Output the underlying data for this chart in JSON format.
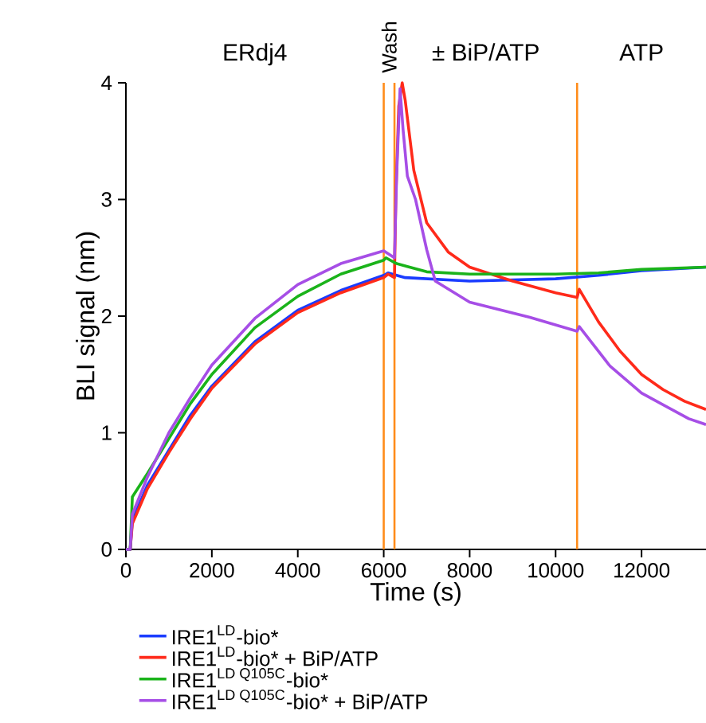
{
  "chart_data": {
    "type": "line",
    "xlabel": "Time (s)",
    "ylabel": "BLI signal (nm)",
    "xlim": [
      0,
      13500
    ],
    "ylim": [
      0,
      4
    ],
    "xticks": [
      0,
      2000,
      4000,
      6000,
      8000,
      10000,
      12000
    ],
    "yticks": [
      0,
      1,
      2,
      3,
      4
    ],
    "grid": false,
    "legend": "bottom",
    "marker": "none",
    "line_style": "solid",
    "ref_lines": [
      {
        "axis": "x",
        "value": 6000,
        "color": "#ff8c1a"
      },
      {
        "axis": "x",
        "value": 6250,
        "color": "#ff8c1a"
      },
      {
        "axis": "x",
        "value": 10500,
        "color": "#ff8c1a"
      }
    ],
    "annotations": [
      "ERdj4",
      "Wash",
      "± BiP/ATP",
      "ATP"
    ],
    "series": [
      {
        "name": "\\text{IRE1}^{\\text{LD}}\\text{-bio*}",
        "color": "#1a3cff",
        "x": [
          0,
          100,
          150,
          500,
          1000,
          1500,
          2000,
          3000,
          4000,
          5000,
          6000,
          6100,
          6500,
          8000,
          10000,
          11000,
          12000,
          13500
        ],
        "values": [
          0,
          0,
          0.25,
          0.55,
          0.85,
          1.15,
          1.4,
          1.78,
          2.05,
          2.22,
          2.35,
          2.37,
          2.33,
          2.3,
          2.32,
          2.35,
          2.39,
          2.42
        ]
      },
      {
        "name": "\\text{IRE1}^{\\text{LD}}\\text{-bio* + BiP/ATP}",
        "color": "#ff2a1a",
        "x": [
          0,
          100,
          150,
          500,
          1000,
          1500,
          2000,
          3000,
          4000,
          5000,
          6000,
          6100,
          6250,
          6280,
          6350,
          6430,
          6500,
          6700,
          7000,
          7500,
          8000,
          9000,
          10000,
          10500,
          10550,
          11000,
          11500,
          12000,
          12500,
          13000,
          13500
        ],
        "values": [
          0,
          0,
          0.22,
          0.52,
          0.83,
          1.12,
          1.38,
          1.76,
          2.03,
          2.2,
          2.33,
          2.36,
          2.33,
          3.0,
          3.8,
          4.0,
          3.85,
          3.25,
          2.8,
          2.55,
          2.42,
          2.3,
          2.2,
          2.16,
          2.23,
          1.95,
          1.7,
          1.5,
          1.37,
          1.27,
          1.2
        ]
      },
      {
        "name": "\\text{IRE1}^{\\text{LD Q105C}}\\text{-bio*}",
        "color": "#1ab31a",
        "x": [
          0,
          100,
          150,
          500,
          1000,
          1500,
          2000,
          3000,
          4000,
          5000,
          6000,
          6050,
          6300,
          7000,
          8000,
          10000,
          11000,
          12000,
          13500
        ],
        "values": [
          0,
          0,
          0.45,
          0.65,
          0.95,
          1.25,
          1.5,
          1.9,
          2.17,
          2.36,
          2.48,
          2.5,
          2.45,
          2.38,
          2.36,
          2.36,
          2.37,
          2.4,
          2.42
        ]
      },
      {
        "name": "\\text{IRE1}^{\\text{LD Q105C}}\\text{-bio* + BiP/ATP}",
        "color": "#a64ee6",
        "x": [
          0,
          100,
          150,
          500,
          1000,
          1500,
          2000,
          3000,
          4000,
          5000,
          6000,
          6250,
          6300,
          6380,
          6450,
          6550,
          6740,
          7000,
          7200,
          8000,
          9400,
          10500,
          10550,
          11270,
          12000,
          13100,
          13500
        ],
        "values": [
          0,
          0,
          0.3,
          0.62,
          1.0,
          1.3,
          1.58,
          1.98,
          2.27,
          2.45,
          2.56,
          2.5,
          3.2,
          3.95,
          3.6,
          3.2,
          3.0,
          2.57,
          2.3,
          2.12,
          1.99,
          1.87,
          1.91,
          1.57,
          1.34,
          1.12,
          1.07
        ]
      }
    ]
  }
}
